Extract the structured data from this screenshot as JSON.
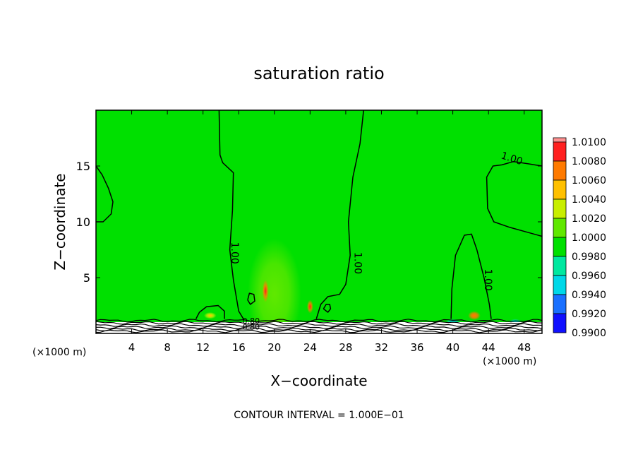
{
  "chart_data": {
    "type": "heatmap",
    "title": "saturation ratio",
    "xlabel": "X−coordinate",
    "ylabel": "Z−coordinate",
    "x_unit_left": "(×1000 m)",
    "x_unit_right": "(×1000 m)",
    "xlim": [
      0,
      50
    ],
    "ylim": [
      0,
      20
    ],
    "x_ticks": [
      4,
      8,
      12,
      16,
      20,
      24,
      28,
      32,
      36,
      40,
      44,
      48
    ],
    "y_ticks": [
      5,
      10,
      15
    ],
    "contour_interval_text": "CONTOUR INTERVAL = 1.000E−01",
    "contour_labels": [
      {
        "text": "1.00",
        "x": 15.2,
        "y": 7.2
      },
      {
        "text": "1.00",
        "x": 29.0,
        "y": 6.3
      },
      {
        "text": "1.00",
        "x": 43.6,
        "y": 4.8
      },
      {
        "text": "1.00",
        "x": 46.5,
        "y": 15.4
      },
      {
        "text": "0.80",
        "x": 17.4,
        "y": 0.9
      },
      {
        "text": "0.80",
        "x": 17.4,
        "y": 0.35
      }
    ],
    "colorbar": {
      "levels": [
        "1.0100",
        "1.0080",
        "1.0060",
        "1.0040",
        "1.0020",
        "1.0000",
        "0.9980",
        "0.9960",
        "0.9940",
        "0.9920",
        "0.9900"
      ],
      "colors": [
        "#ff9090",
        "#ff2020",
        "#ff7a00",
        "#ffc000",
        "#c8ee00",
        "#60e800",
        "#00e000",
        "#00e8a0",
        "#00d8e8",
        "#1a70ff",
        "#1010ff",
        "#1a1aa0",
        "#6000a0"
      ]
    },
    "background_color": "#00e000",
    "features": [
      {
        "kind": "plume",
        "x": 20,
        "y": 3.5,
        "sx": 3.0,
        "sy": 5.0,
        "value": 1.0012
      },
      {
        "kind": "peak",
        "x": 19.0,
        "y": 3.8,
        "sx": 0.35,
        "sy": 1.0,
        "value": 1.0068
      },
      {
        "kind": "peak",
        "x": 24.0,
        "y": 2.4,
        "sx": 0.35,
        "sy": 0.6,
        "value": 1.007
      },
      {
        "kind": "peak",
        "x": 12.8,
        "y": 1.6,
        "sx": 0.7,
        "sy": 0.3,
        "value": 1.0025
      },
      {
        "kind": "peak",
        "x": 42.4,
        "y": 1.6,
        "sx": 0.7,
        "sy": 0.4,
        "value": 1.006
      },
      {
        "kind": "cool",
        "x": 33,
        "y": 6,
        "sx": 4.0,
        "sy": 3.5,
        "value": 0.9983
      },
      {
        "kind": "cool",
        "x": 46,
        "y": 4,
        "sx": 2.5,
        "sy": 3.0,
        "value": 0.9983
      },
      {
        "kind": "cool",
        "x": 40,
        "y": 1.0,
        "sx": 0.8,
        "sy": 0.3,
        "value": 0.9945
      },
      {
        "kind": "cool",
        "x": 47,
        "y": 1.0,
        "sx": 0.7,
        "sy": 0.3,
        "value": 0.995
      }
    ],
    "contour_1_00": [
      [
        [
          13.8,
          20
        ],
        [
          13.9,
          16
        ],
        [
          14.2,
          15.3
        ],
        [
          15.4,
          14.4
        ],
        [
          15.3,
          11
        ],
        [
          15.0,
          7.5
        ],
        [
          15.4,
          4.8
        ],
        [
          16.0,
          2.0
        ],
        [
          16.6,
          1.2
        ]
      ],
      [
        [
          30.0,
          20
        ],
        [
          29.6,
          17
        ],
        [
          28.8,
          14
        ],
        [
          28.3,
          10
        ],
        [
          28.5,
          7
        ],
        [
          28.0,
          4.4
        ],
        [
          27.3,
          3.5
        ],
        [
          26.0,
          3.3
        ],
        [
          25.2,
          2.6
        ],
        [
          24.7,
          1.3
        ]
      ],
      [
        [
          50.0,
          8.7
        ],
        [
          48.2,
          9.1
        ],
        [
          46.4,
          9.5
        ],
        [
          44.6,
          10.0
        ],
        [
          43.9,
          11.2
        ],
        [
          43.8,
          14.0
        ],
        [
          44.5,
          15.0
        ],
        [
          45.5,
          15.1
        ],
        [
          46.8,
          15.4
        ],
        [
          48.4,
          15.2
        ],
        [
          50.0,
          15.0
        ]
      ],
      [
        [
          0,
          10.0
        ],
        [
          0.8,
          10.0
        ],
        [
          1.7,
          10.7
        ],
        [
          1.9,
          11.8
        ],
        [
          1.4,
          13.0
        ],
        [
          0.7,
          14.2
        ],
        [
          0,
          15.0
        ]
      ],
      [
        [
          11.2,
          1.3
        ],
        [
          11.6,
          1.9
        ],
        [
          12.4,
          2.4
        ],
        [
          13.7,
          2.5
        ],
        [
          14.4,
          2.0
        ],
        [
          14.4,
          1.3
        ]
      ],
      [
        [
          39.8,
          1.3
        ],
        [
          39.9,
          4.0
        ],
        [
          40.3,
          7.0
        ],
        [
          41.3,
          8.8
        ],
        [
          42.1,
          8.9
        ],
        [
          42.7,
          7.5
        ],
        [
          43.5,
          5.0
        ],
        [
          44.1,
          2.6
        ],
        [
          44.3,
          1.3
        ]
      ],
      [
        [
          17.0,
          3.0
        ],
        [
          17.2,
          3.6
        ],
        [
          17.7,
          3.5
        ],
        [
          17.8,
          2.9
        ],
        [
          17.3,
          2.6
        ],
        [
          17.0,
          3.0
        ]
      ],
      [
        [
          25.5,
          2.2
        ],
        [
          25.8,
          2.6
        ],
        [
          26.2,
          2.6
        ],
        [
          26.3,
          2.2
        ],
        [
          26.0,
          1.9
        ],
        [
          25.5,
          2.2
        ]
      ]
    ],
    "surface_lines_y": [
      1.15,
      0.95,
      0.75,
      0.55,
      0.35,
      0.2
    ]
  }
}
